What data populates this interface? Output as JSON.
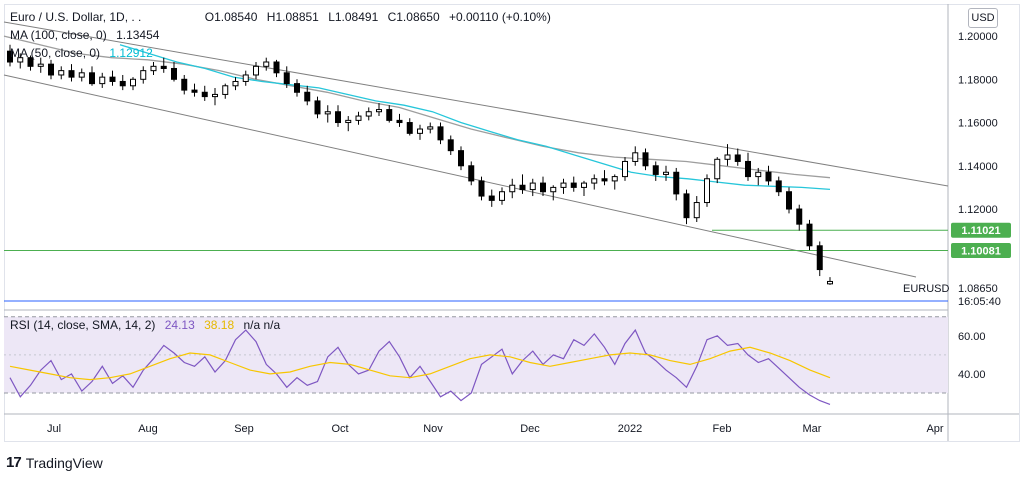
{
  "header": {
    "symbol": "Euro / U.S. Dollar, 1D, . .",
    "open": "O1.08540",
    "high": "H1.08851",
    "low": "L1.08491",
    "close": "C1.08650",
    "change": "+0.00110 (+0.10%)",
    "ma100_label": "MA (100, close, 0)",
    "ma100_value": "1.13454",
    "ma50_label": "MA (50, close, 0)",
    "ma50_value": "1.12912",
    "currency": "USD"
  },
  "rsi_legend": {
    "label": "RSI (14, close, SMA, 14, 2)",
    "rsi_value": "24.13",
    "sma_value": "38.18",
    "extra": "n/a  n/a"
  },
  "price_labels": {
    "level1": "1.11021",
    "level2": "1.10081",
    "last": "1.08650",
    "ticker": "EURUSD",
    "time": "16:05:40"
  },
  "branding": {
    "name": "TradingView"
  },
  "colors": {
    "up": "#ffffff",
    "down": "#000000",
    "ma50": "#26c6da",
    "ma100": "#9e9e9e",
    "channel": "#808080",
    "level_line": "#4caf50",
    "rsi_line": "#7e57c2",
    "rsi_sma": "#f7c600",
    "rsi_band": "#ede7f6"
  },
  "chart_data": [
    {
      "type": "candlestick",
      "title": "Euro / U.S. Dollar, 1D",
      "x_ticks": [
        "Jul",
        "Aug",
        "Sep",
        "Oct",
        "Nov",
        "Dec",
        "2022",
        "Feb",
        "Mar",
        "Apr"
      ],
      "y_ticks": [
        "1.20000",
        "1.18000",
        "1.16000",
        "1.14000",
        "1.12000"
      ],
      "ylim": [
        1.077,
        1.2065
      ],
      "candles_ohlc": [
        [
          1.193,
          1.196,
          1.186,
          1.188
        ],
        [
          1.188,
          1.192,
          1.185,
          1.19
        ],
        [
          1.19,
          1.191,
          1.184,
          1.186
        ],
        [
          1.186,
          1.19,
          1.183,
          1.187
        ],
        [
          1.187,
          1.189,
          1.18,
          1.182
        ],
        [
          1.182,
          1.186,
          1.18,
          1.184
        ],
        [
          1.184,
          1.187,
          1.179,
          1.181
        ],
        [
          1.181,
          1.185,
          1.179,
          1.183
        ],
        [
          1.183,
          1.186,
          1.177,
          1.178
        ],
        [
          1.178,
          1.183,
          1.176,
          1.181
        ],
        [
          1.181,
          1.184,
          1.177,
          1.179
        ],
        [
          1.179,
          1.182,
          1.175,
          1.177
        ],
        [
          1.177,
          1.181,
          1.175,
          1.18
        ],
        [
          1.18,
          1.186,
          1.178,
          1.184
        ],
        [
          1.184,
          1.188,
          1.182,
          1.186
        ],
        [
          1.186,
          1.19,
          1.183,
          1.185
        ],
        [
          1.185,
          1.188,
          1.179,
          1.18
        ],
        [
          1.18,
          1.182,
          1.173,
          1.175
        ],
        [
          1.175,
          1.178,
          1.172,
          1.174
        ],
        [
          1.174,
          1.177,
          1.17,
          1.172
        ],
        [
          1.172,
          1.176,
          1.168,
          1.173
        ],
        [
          1.173,
          1.178,
          1.171,
          1.177
        ],
        [
          1.177,
          1.181,
          1.175,
          1.179
        ],
        [
          1.179,
          1.184,
          1.177,
          1.182
        ],
        [
          1.182,
          1.188,
          1.18,
          1.186
        ],
        [
          1.186,
          1.19,
          1.184,
          1.188
        ],
        [
          1.188,
          1.189,
          1.181,
          1.183
        ],
        [
          1.183,
          1.186,
          1.176,
          1.178
        ],
        [
          1.178,
          1.18,
          1.172,
          1.174
        ],
        [
          1.174,
          1.177,
          1.168,
          1.17
        ],
        [
          1.17,
          1.172,
          1.162,
          1.164
        ],
        [
          1.164,
          1.168,
          1.16,
          1.165
        ],
        [
          1.165,
          1.168,
          1.158,
          1.16
        ],
        [
          1.16,
          1.163,
          1.156,
          1.161
        ],
        [
          1.161,
          1.165,
          1.159,
          1.163
        ],
        [
          1.163,
          1.167,
          1.161,
          1.165
        ],
        [
          1.165,
          1.169,
          1.163,
          1.166
        ],
        [
          1.166,
          1.168,
          1.16,
          1.161
        ],
        [
          1.161,
          1.164,
          1.158,
          1.16
        ],
        [
          1.16,
          1.162,
          1.154,
          1.155
        ],
        [
          1.155,
          1.159,
          1.152,
          1.157
        ],
        [
          1.157,
          1.16,
          1.155,
          1.158
        ],
        [
          1.158,
          1.16,
          1.15,
          1.152
        ],
        [
          1.152,
          1.154,
          1.145,
          1.147
        ],
        [
          1.147,
          1.149,
          1.138,
          1.14
        ],
        [
          1.14,
          1.142,
          1.131,
          1.133
        ],
        [
          1.133,
          1.135,
          1.124,
          1.126
        ],
        [
          1.126,
          1.129,
          1.121,
          1.124
        ],
        [
          1.124,
          1.13,
          1.122,
          1.128
        ],
        [
          1.128,
          1.134,
          1.125,
          1.131
        ],
        [
          1.131,
          1.136,
          1.127,
          1.129
        ],
        [
          1.129,
          1.134,
          1.126,
          1.132
        ],
        [
          1.132,
          1.135,
          1.126,
          1.128
        ],
        [
          1.128,
          1.131,
          1.124,
          1.13
        ],
        [
          1.13,
          1.134,
          1.127,
          1.132
        ],
        [
          1.132,
          1.135,
          1.128,
          1.13
        ],
        [
          1.13,
          1.133,
          1.126,
          1.132
        ],
        [
          1.132,
          1.136,
          1.129,
          1.134
        ],
        [
          1.134,
          1.138,
          1.131,
          1.133
        ],
        [
          1.133,
          1.136,
          1.129,
          1.135
        ],
        [
          1.135,
          1.144,
          1.133,
          1.142
        ],
        [
          1.142,
          1.149,
          1.14,
          1.146
        ],
        [
          1.146,
          1.148,
          1.138,
          1.14
        ],
        [
          1.14,
          1.142,
          1.133,
          1.136
        ],
        [
          1.136,
          1.14,
          1.133,
          1.137
        ],
        [
          1.137,
          1.139,
          1.124,
          1.127
        ],
        [
          1.127,
          1.129,
          1.113,
          1.116
        ],
        [
          1.116,
          1.126,
          1.114,
          1.123
        ],
        [
          1.123,
          1.136,
          1.121,
          1.134
        ],
        [
          1.134,
          1.144,
          1.132,
          1.143
        ],
        [
          1.143,
          1.15,
          1.14,
          1.145
        ],
        [
          1.145,
          1.148,
          1.14,
          1.142
        ],
        [
          1.142,
          1.146,
          1.133,
          1.135
        ],
        [
          1.135,
          1.139,
          1.131,
          1.137
        ],
        [
          1.137,
          1.14,
          1.131,
          1.133
        ],
        [
          1.133,
          1.135,
          1.126,
          1.128
        ],
        [
          1.128,
          1.13,
          1.118,
          1.12
        ],
        [
          1.12,
          1.122,
          1.11,
          1.113
        ],
        [
          1.113,
          1.115,
          1.101,
          1.103
        ],
        [
          1.103,
          1.105,
          1.089,
          1.092
        ],
        [
          1.0854,
          1.08851,
          1.08491,
          1.0865
        ]
      ],
      "ma50": [
        1.196,
        1.192,
        1.188,
        1.185,
        1.181,
        1.179,
        1.1775,
        1.176,
        1.173,
        1.17,
        1.168,
        1.165,
        1.16,
        1.156,
        1.152,
        1.149,
        1.145,
        1.141,
        1.137,
        1.135,
        1.134,
        1.1325,
        1.131,
        1.1305,
        1.13,
        1.1291
      ],
      "ma100": [
        1.2,
        1.196,
        1.192,
        1.19,
        1.189,
        1.187,
        1.184,
        1.18,
        1.177,
        1.174,
        1.17,
        1.167,
        1.162,
        1.157,
        1.153,
        1.149,
        1.146,
        1.144,
        1.143,
        1.142,
        1.14,
        1.138,
        1.136,
        1.1345
      ],
      "horizontal_levels": [
        1.11021,
        1.10081
      ],
      "last_price": 1.0865
    },
    {
      "type": "line",
      "title": "RSI (14, close, SMA, 14, 2)",
      "y_ticks": [
        "60.00",
        "40.00"
      ],
      "ylim": [
        20,
        72
      ],
      "band": [
        30,
        70
      ],
      "series": [
        {
          "name": "RSI",
          "values": [
            38,
            28,
            34,
            42,
            47,
            37,
            40,
            31,
            36,
            44,
            35,
            39,
            33,
            42,
            48,
            55,
            51,
            46,
            44,
            49,
            41,
            47,
            58,
            63,
            57,
            45,
            40,
            33,
            38,
            34,
            36,
            49,
            54,
            45,
            40,
            42,
            52,
            57,
            49,
            38,
            44,
            36,
            28,
            31,
            26,
            30,
            45,
            49,
            53,
            40,
            47,
            52,
            45,
            50,
            48,
            58,
            55,
            61,
            54,
            45,
            56,
            63,
            51,
            47,
            42,
            38,
            33,
            44,
            58,
            60,
            55,
            56,
            50,
            46,
            48,
            43,
            38,
            33,
            29,
            26,
            24
          ]
        },
        {
          "name": "SMA",
          "values": [
            44,
            42,
            40,
            38,
            37,
            38,
            40,
            44,
            48,
            51,
            50,
            46,
            42,
            40,
            41,
            44,
            46,
            45,
            42,
            39,
            38,
            40,
            44,
            48,
            50,
            49,
            46,
            44,
            46,
            48,
            50,
            51,
            50,
            47,
            45,
            48,
            52,
            54,
            51,
            47,
            42,
            38
          ]
        }
      ]
    }
  ]
}
